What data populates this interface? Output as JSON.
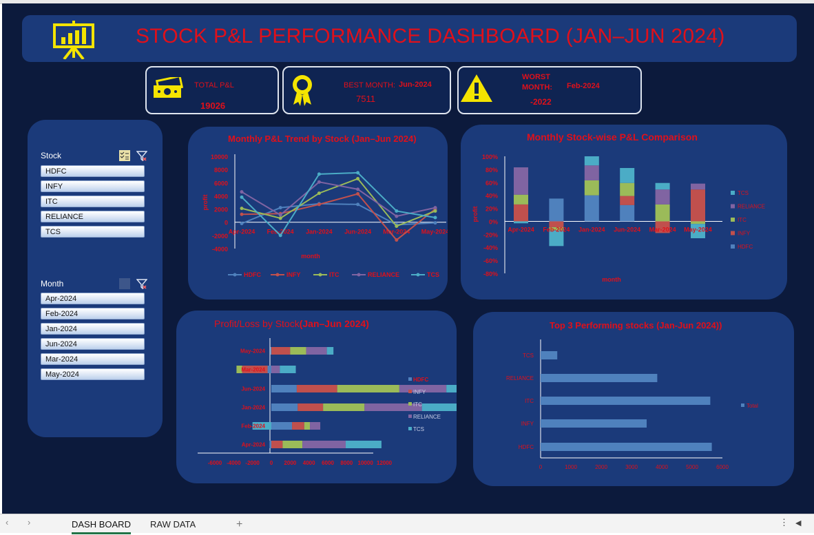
{
  "dashboard": {
    "title": "STOCK P&L PERFORMANCE DASHBOARD (JAN–JUN 2024)",
    "colors": {
      "background": "#0c1a3c",
      "panel": "#1b3a7a",
      "accent_red": "#e0101a",
      "icon_yellow": "#f4e400"
    },
    "icons": [
      "presentation-chart-icon",
      "cash-icon",
      "award-ribbon-icon",
      "warning-icon",
      "multi-select-icon",
      "clear-filter-icon"
    ]
  },
  "kpis": {
    "total": {
      "label": "TOTAL P&L",
      "value": "19026"
    },
    "best": {
      "label": "BEST MONTH:",
      "month": "Jun-2024",
      "value": "7511"
    },
    "worst": {
      "label1": "WORST",
      "label2": "MONTH:",
      "month": "Feb-2024",
      "value": "-2022"
    }
  },
  "slicers": {
    "stock": {
      "header": "Stock",
      "items": [
        "HDFC",
        "INFY",
        "ITC",
        "RELIANCE",
        "TCS"
      ]
    },
    "month": {
      "header": "Month",
      "items": [
        "Apr-2024",
        "Feb-2024",
        "Jan-2024",
        "Jun-2024",
        "Mar-2024",
        "May-2024"
      ]
    }
  },
  "chart_data": [
    {
      "id": "trend",
      "type": "line",
      "title": "Monthly P&L Trend by Stock (Jan–Jun 2024)",
      "xlabel": "month",
      "ylabel": "profit",
      "categories": [
        "Apr-2024",
        "Feb-2024",
        "Jan-2024",
        "Jun-2024",
        "Mar-2024",
        "May-2024"
      ],
      "ylim": [
        -4000,
        10000
      ],
      "yticks": [
        "10000",
        "8000",
        "6000",
        "4000",
        "2000",
        "0",
        "-2000",
        "-4000"
      ],
      "legend_position": "bottom",
      "series": [
        {
          "name": "HDFC",
          "color": "#4f81bd",
          "values": [
            -200,
            2200,
            2800,
            2700,
            -400,
            -100
          ]
        },
        {
          "name": "INFY",
          "color": "#c0504d",
          "values": [
            1200,
            1300,
            2700,
            4300,
            -2700,
            2000
          ]
        },
        {
          "name": "ITC",
          "color": "#9bbb59",
          "values": [
            2100,
            600,
            4400,
            6600,
            -600,
            1700
          ]
        },
        {
          "name": "RELIANCE",
          "color": "#8064a2",
          "values": [
            4600,
            1100,
            6100,
            5000,
            900,
            2200
          ]
        },
        {
          "name": "TCS",
          "color": "#4bacc6",
          "values": [
            3800,
            -2000,
            7300,
            7500,
            1700,
            700
          ]
        }
      ]
    },
    {
      "id": "stacked100",
      "type": "bar",
      "title": "Monthly Stock-wise P&L Comparison",
      "xlabel": "month",
      "ylabel": "profit",
      "categories": [
        "Apr-2024",
        "Feb-2024",
        "Jan-2024",
        "Jun-2024",
        "Mar-2024",
        "May-2024"
      ],
      "ylim": [
        -80,
        100
      ],
      "yticks": [
        "100%",
        "80%",
        "60%",
        "40%",
        "20%",
        "0%",
        "-20%",
        "-40%",
        "-60%",
        "-80%"
      ],
      "legend_position": "right",
      "series": [
        {
          "name": "TCS",
          "color": "#4bacc6",
          "values": [
            -3,
            -24,
            14,
            23,
            10,
            -22
          ]
        },
        {
          "name": "RELIANCE",
          "color": "#8064a2",
          "values": [
            42,
            0,
            23,
            0,
            23,
            9
          ]
        },
        {
          "name": "ITC",
          "color": "#9bbb59",
          "values": [
            15,
            -5,
            23,
            20,
            26,
            -4
          ]
        },
        {
          "name": "INFY",
          "color": "#c0504d",
          "values": [
            26,
            -9,
            0,
            14,
            -18,
            49
          ]
        },
        {
          "name": "HDFC",
          "color": "#4f81bd",
          "values": [
            0,
            35,
            40,
            25,
            0,
            0
          ]
        }
      ]
    },
    {
      "id": "bystock",
      "type": "bar",
      "title": "Profit/Loss by Stock",
      "title_suffix": "(Jan–Jun 2024)",
      "categories": [
        "May-2024",
        "Mar-2024",
        "Jun-2024",
        "Jan-2024",
        "Feb-2024",
        "Apr-2024"
      ],
      "xlim": [
        -6000,
        12000
      ],
      "xticks": [
        "-6000",
        "-4000",
        "-2000",
        "0",
        "2000",
        "4000",
        "6000",
        "8000",
        "10000",
        "12000"
      ],
      "legend_position": "right",
      "series": [
        {
          "name": "HDFC",
          "color": "#4f81bd",
          "values": [
            -100,
            -400,
            2700,
            2800,
            2200,
            -200
          ]
        },
        {
          "name": "INFY",
          "color": "#c0504d",
          "values": [
            2000,
            -2700,
            4300,
            2700,
            1300,
            1200
          ]
        },
        {
          "name": "ITC",
          "color": "#9bbb59",
          "values": [
            1700,
            -600,
            6600,
            4400,
            600,
            2100
          ]
        },
        {
          "name": "RELIANCE",
          "color": "#8064a2",
          "values": [
            2200,
            900,
            5000,
            6100,
            1100,
            4600
          ]
        },
        {
          "name": "TCS",
          "color": "#4bacc6",
          "values": [
            700,
            1700,
            7500,
            7300,
            -2000,
            3800
          ]
        }
      ]
    },
    {
      "id": "top3",
      "type": "bar",
      "title": "Top 3 Performing stocks (Jan-Jun 2024))",
      "categories": [
        "TCS",
        "RELIANCE",
        "ITC",
        "INFY",
        "HDFC"
      ],
      "values": [
        550,
        3850,
        5600,
        3500,
        5650
      ],
      "xlim": [
        0,
        6000
      ],
      "xticks": [
        "0",
        "1000",
        "2000",
        "3000",
        "4000",
        "5000",
        "6000"
      ],
      "legend_position": "right",
      "series_name": "Total",
      "color": "#4f81bd"
    }
  ],
  "sheet_tabs": {
    "active": "DASH BOARD",
    "other": "RAW DATA",
    "add": "+"
  }
}
